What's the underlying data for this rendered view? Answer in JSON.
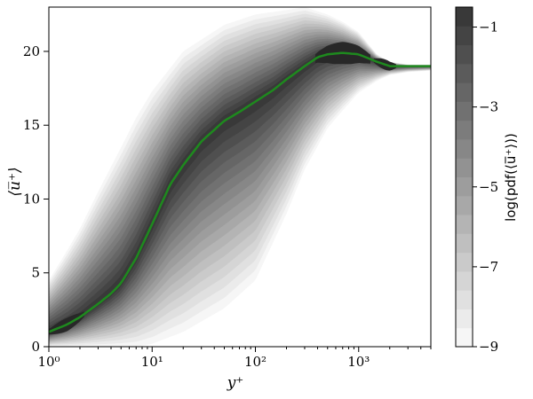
{
  "chart_data": {
    "type": "area",
    "xlabel": "y⁺",
    "ylabel": "⟨u̅⁺⟩",
    "x_scale": "log",
    "xlim": [
      1,
      5000
    ],
    "ylim": [
      0,
      23
    ],
    "x_ticks": [
      1,
      10,
      100,
      1000
    ],
    "x_tick_labels": [
      "10⁰",
      "10¹",
      "10²",
      "10³"
    ],
    "y_ticks": [
      0,
      5,
      10,
      15,
      20
    ],
    "y_tick_labels": [
      "0",
      "5",
      "10",
      "15",
      "20"
    ],
    "mean_profile": {
      "color": "#1e8a1e",
      "x": [
        1,
        1.5,
        2,
        3,
        4,
        5,
        7,
        10,
        15,
        20,
        30,
        50,
        70,
        100,
        150,
        200,
        300,
        400,
        500,
        700,
        1000,
        1500,
        2000,
        3000,
        5000
      ],
      "y": [
        1.0,
        1.5,
        2.0,
        2.9,
        3.6,
        4.3,
        6.0,
        8.3,
        11.0,
        12.3,
        13.9,
        15.3,
        15.9,
        16.6,
        17.4,
        18.1,
        19.0,
        19.6,
        19.8,
        19.9,
        19.8,
        19.3,
        19.0,
        19.0,
        19.0
      ]
    },
    "pdf_envelope": {
      "x": [
        1,
        1.5,
        2,
        3,
        5,
        7,
        10,
        20,
        50,
        100,
        200,
        300,
        500,
        700,
        1000,
        1500,
        2000,
        3000,
        5000
      ],
      "lower": [
        0.0,
        0.0,
        0.0,
        0.0,
        0.0,
        0.0,
        0.2,
        1.0,
        2.6,
        4.5,
        9.0,
        12.0,
        14.8,
        16.0,
        17.2,
        18.0,
        18.4,
        18.6,
        18.7
      ],
      "upper": [
        4.5,
        6.5,
        8.0,
        10.5,
        13.5,
        15.5,
        17.3,
        20.0,
        21.8,
        22.5,
        22.8,
        23.0,
        22.5,
        22.0,
        21.3,
        19.8,
        19.3,
        19.1,
        19.1
      ]
    },
    "colorbar": {
      "label": "log(pdf(⟨u̅⁺⟩))",
      "range": [
        -9,
        -0.5
      ],
      "ticks": [
        -1,
        -3,
        -5,
        -7,
        -9
      ],
      "tick_labels": [
        "−1",
        "−3",
        "−5",
        "−7",
        "−9"
      ],
      "levels": 18,
      "color_low": "#ffffff",
      "color_high": "#282828"
    }
  }
}
